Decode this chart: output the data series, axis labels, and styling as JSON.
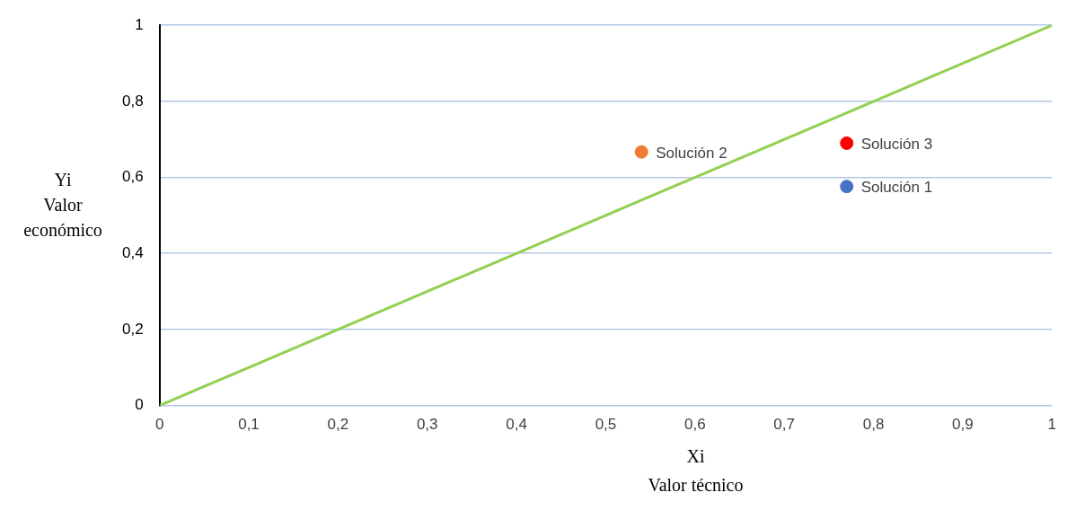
{
  "chart_data": {
    "type": "scatter",
    "xlabel": "Xi\nValor técnico",
    "ylabel": "Yi\nValor\neconómico",
    "xlim": [
      0,
      1
    ],
    "ylim": [
      0,
      1
    ],
    "xticks": [
      0,
      {
        "value": 0.1,
        "label": "0,1"
      },
      {
        "value": 0.2,
        "label": "0,2"
      },
      {
        "value": 0.3,
        "label": "0,3"
      },
      {
        "value": 0.4,
        "label": "0,4"
      },
      {
        "value": 0.5,
        "label": "0,5"
      },
      {
        "value": 0.6,
        "label": "0,6"
      },
      {
        "value": 0.7,
        "label": "0,7"
      },
      {
        "value": 0.8,
        "label": "0,8"
      },
      {
        "value": 0.9,
        "label": "0,9"
      },
      1
    ],
    "yticks": [
      0,
      {
        "value": 0.2,
        "label": "0,2"
      },
      {
        "value": 0.4,
        "label": "0,4"
      },
      {
        "value": 0.6,
        "label": "0,6"
      },
      {
        "value": 0.8,
        "label": "0,8"
      },
      1
    ],
    "grid": "y",
    "legend": false,
    "marker": "circle",
    "series": [
      {
        "type": "line",
        "color": "#92d050",
        "x": [
          0,
          1
        ],
        "values": [
          0,
          1
        ],
        "marker": "none"
      },
      {
        "name": "Solución 2",
        "color": "#ed7d31",
        "x": [
          0.54
        ],
        "values": [
          0.667
        ]
      },
      {
        "name": "Solución 3",
        "color": "#ff0000",
        "x": [
          0.77
        ],
        "values": [
          0.69
        ]
      },
      {
        "name": "Solución 1",
        "color": "#4472c4",
        "x": [
          0.77
        ],
        "values": [
          0.576
        ]
      }
    ]
  }
}
